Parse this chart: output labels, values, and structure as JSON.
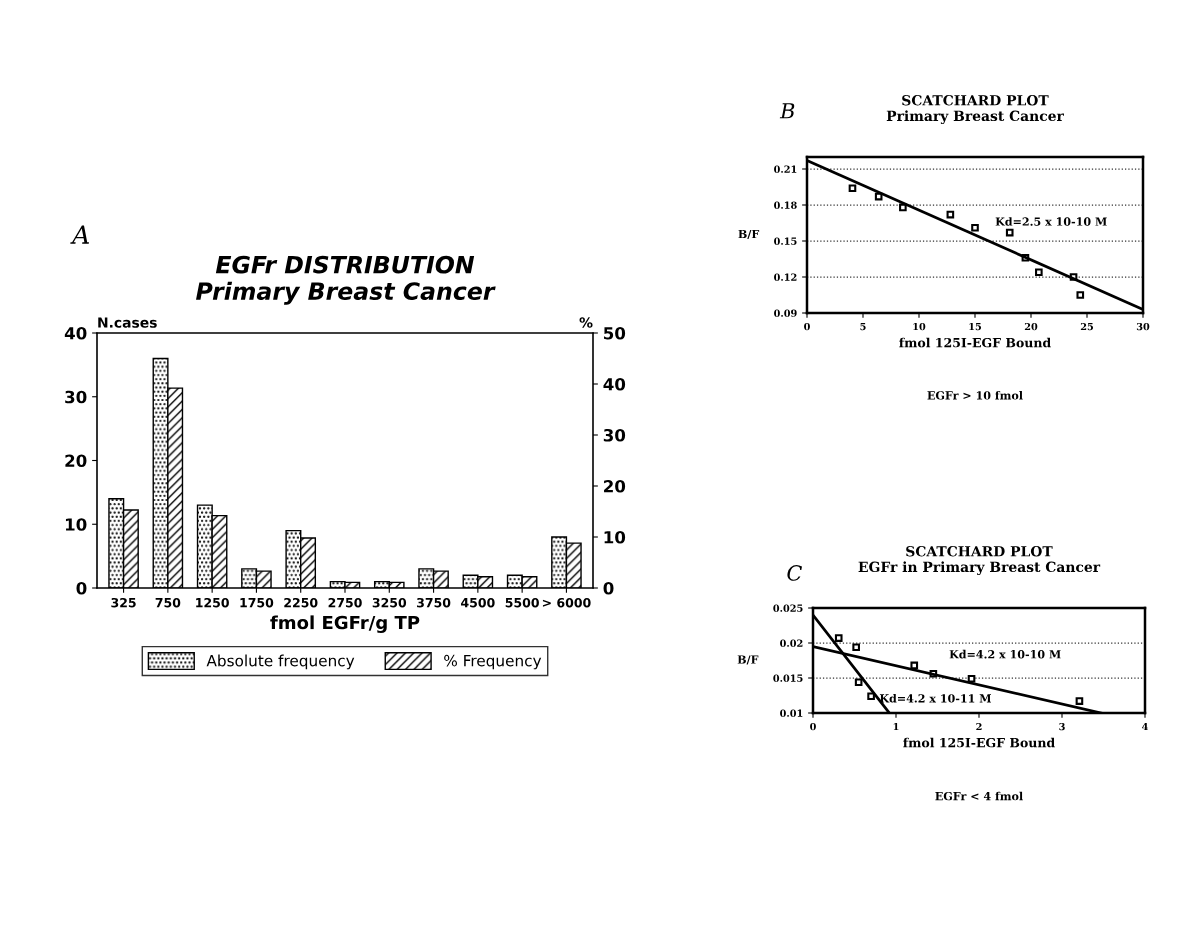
{
  "chart_data": [
    {
      "type": "bar",
      "title": "EGFr DISTRIBUTION",
      "subtitle": "Primary Breast Cancer",
      "xlabel": "fmol EGFr/g TP",
      "ylabel": "N.cases",
      "y2label": "%",
      "annotations": [
        "A"
      ],
      "categories": [
        "325",
        "750",
        "1250",
        "1750",
        "2250",
        "2750",
        "3250",
        "3750",
        "4500",
        "5500",
        "> 6000"
      ],
      "series": [
        {
          "name": "Absolute frequency",
          "color": "#000000",
          "values": [
            14,
            36,
            13,
            3,
            9,
            1,
            1,
            3,
            2,
            2,
            8
          ]
        },
        {
          "name": "% Frequency",
          "color": "#000000",
          "axis": "y2",
          "values": [
            15.3,
            39.2,
            14.2,
            3.3,
            9.8,
            1.1,
            1.1,
            3.3,
            2.2,
            2.2,
            8.8
          ]
        }
      ],
      "ylim": [
        0,
        40
      ],
      "yticks": [
        0,
        10,
        20,
        30,
        40
      ],
      "y2lim": [
        0,
        50
      ],
      "y2ticks": [
        0,
        10,
        20,
        30,
        40,
        50
      ],
      "legend": "bottom"
    },
    {
      "type": "scatter",
      "title": "SCATCHARD PLOT",
      "subtitle": "Primary Breast Cancer",
      "xlabel": "fmol 125I-EGF Bound",
      "ylabel": "B/F",
      "annotations": [
        "B",
        "Kd=2.5 x 10-10 M",
        "EGFr > 10 fmol"
      ],
      "series": [
        {
          "color": "#000000",
          "x": [
            4.06,
            6.4,
            8.56,
            12.8,
            15.0,
            18.1,
            19.5,
            20.7,
            23.8,
            24.4
          ],
          "values": [
            0.194,
            0.187,
            0.178,
            0.172,
            0.161,
            0.157,
            0.136,
            0.124,
            0.12,
            0.105
          ]
        },
        {
          "type": "line",
          "color": "#000000",
          "marker": "none",
          "x": [
            0,
            30
          ],
          "values": [
            0.217,
            0.093
          ]
        }
      ],
      "xlim": [
        0,
        30
      ],
      "xticks": [
        0,
        5,
        10,
        15,
        20,
        25,
        30
      ],
      "ylim": [
        0.09,
        0.22
      ],
      "yticks": [
        0.09,
        0.12,
        0.15,
        0.18,
        0.21
      ],
      "grid": "y",
      "marker": "square"
    },
    {
      "type": "scatter",
      "title": "SCATCHARD PLOT",
      "subtitle": "EGFr in Primary Breast Cancer",
      "xlabel": "fmol 125I-EGF Bound",
      "ylabel": "B/F",
      "annotations": [
        "C",
        "Kd=4.2 x 10-10 M",
        "Kd=4.2 x 10-11 M",
        "EGFr < 4 fmol"
      ],
      "series": [
        {
          "color": "#000000",
          "x": [
            0.31,
            0.52,
            0.55,
            0.7,
            1.22,
            1.45,
            1.91,
            3.21
          ],
          "values": [
            0.0207,
            0.0194,
            0.0144,
            0.0124,
            0.0168,
            0.0156,
            0.0149,
            0.0117
          ]
        },
        {
          "type": "line",
          "color": "#000000",
          "marker": "none",
          "x": [
            0,
            0.92
          ],
          "values": [
            0.024,
            0.01
          ]
        },
        {
          "type": "line",
          "color": "#000000",
          "marker": "none",
          "x": [
            0,
            3.47
          ],
          "values": [
            0.0195,
            0.01
          ]
        }
      ],
      "xlim": [
        0,
        4
      ],
      "xticks": [
        0,
        1,
        2,
        3,
        4
      ],
      "ylim": [
        0.01,
        0.025
      ],
      "yticks": [
        0.01,
        0.015,
        0.02,
        0.025
      ],
      "grid": "y",
      "marker": "square"
    }
  ]
}
